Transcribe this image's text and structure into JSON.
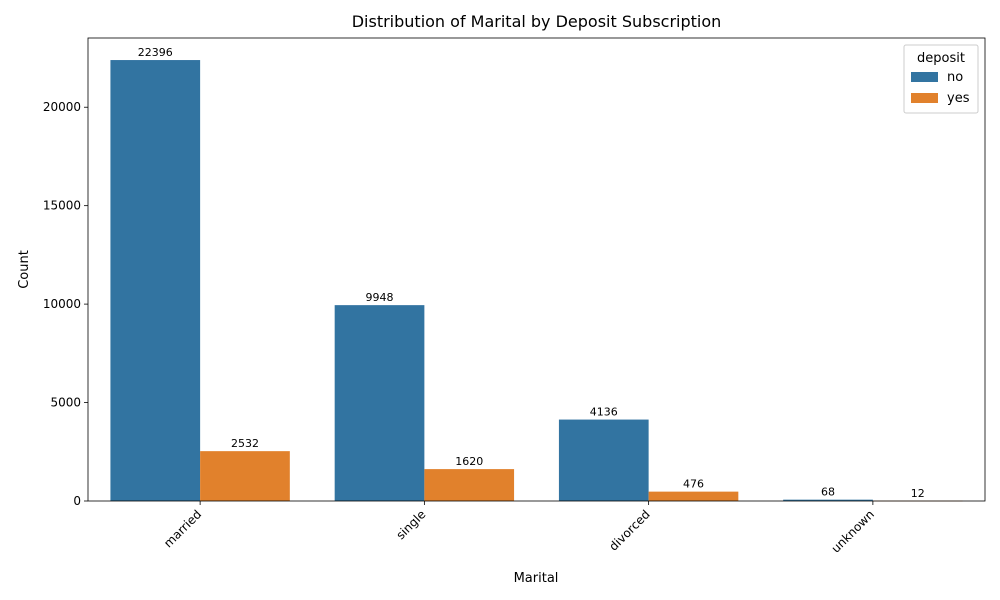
{
  "chart_data": {
    "type": "bar",
    "title": "Distribution of Marital by Deposit Subscription",
    "xlabel": "Marital",
    "ylabel": "Count",
    "categories": [
      "married",
      "single",
      "divorced",
      "unknown"
    ],
    "series": [
      {
        "name": "no",
        "color": "#3274a1",
        "values": [
          22396,
          9948,
          4136,
          68
        ]
      },
      {
        "name": "yes",
        "color": "#e1812c",
        "values": [
          2532,
          1620,
          476,
          12
        ]
      }
    ],
    "ylim": [
      0,
      23516
    ],
    "yticks": [
      0,
      5000,
      10000,
      15000,
      20000
    ],
    "legend": {
      "title": "deposit",
      "placement": "top-right"
    },
    "grid": false
  }
}
